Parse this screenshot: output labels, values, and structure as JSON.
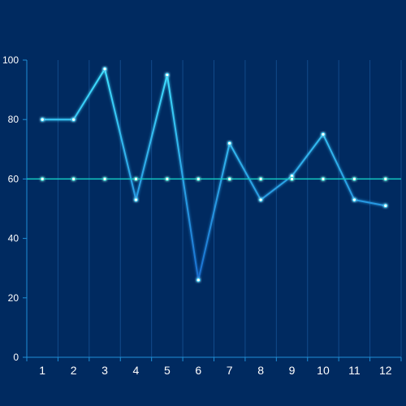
{
  "chart_data": {
    "type": "line",
    "title": "",
    "xlabel": "",
    "ylabel": "",
    "x": [
      "1",
      "2",
      "3",
      "4",
      "5",
      "6",
      "7",
      "8",
      "9",
      "10",
      "11",
      "12"
    ],
    "ylim": [
      0,
      100
    ],
    "yticks": [
      0,
      20,
      40,
      60,
      80,
      100
    ],
    "grid": "vertical",
    "legend": "none",
    "series": [
      {
        "values": [
          80,
          80,
          97,
          53,
          95,
          26,
          72,
          53,
          61,
          75,
          53,
          51
        ],
        "color": "#1fc6f0",
        "style": "line-with-points"
      },
      {
        "values": [
          60,
          60,
          60,
          60,
          60,
          60,
          60,
          60,
          60,
          60,
          60,
          60
        ],
        "color": "#13c9c2",
        "style": "reference-line-with-points"
      }
    ]
  },
  "colors": {
    "background": "#002a60",
    "axis": "#1f8fd6",
    "grid": "#124a8a",
    "text": "#ffffff"
  }
}
